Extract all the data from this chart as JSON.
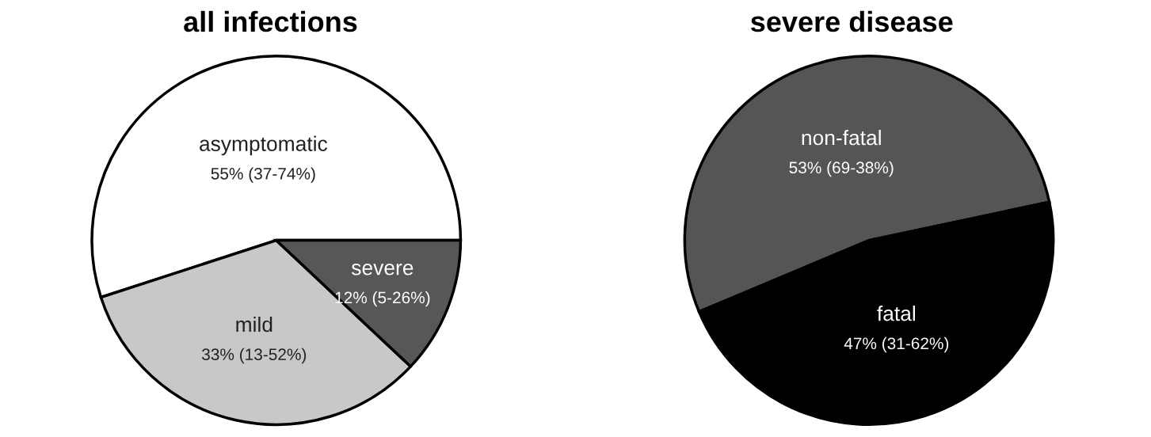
{
  "chart_data": [
    {
      "type": "pie",
      "title": "all infections",
      "categories": [
        "asymptomatic",
        "mild",
        "severe"
      ],
      "values": [
        55,
        33,
        12
      ],
      "colors": [
        "#ffffff",
        "#c8c8c8",
        "#575757"
      ],
      "value_labels": [
        "55% (37-74%)",
        "33% (13-52%)",
        "12% (5-26%)"
      ]
    },
    {
      "type": "pie",
      "title": "severe disease",
      "categories": [
        "non-fatal",
        "fatal"
      ],
      "values": [
        53,
        47
      ],
      "colors": [
        "#555555",
        "#000000"
      ],
      "value_labels": [
        "53% (69-38%)",
        "47% (31-62%)"
      ]
    }
  ]
}
